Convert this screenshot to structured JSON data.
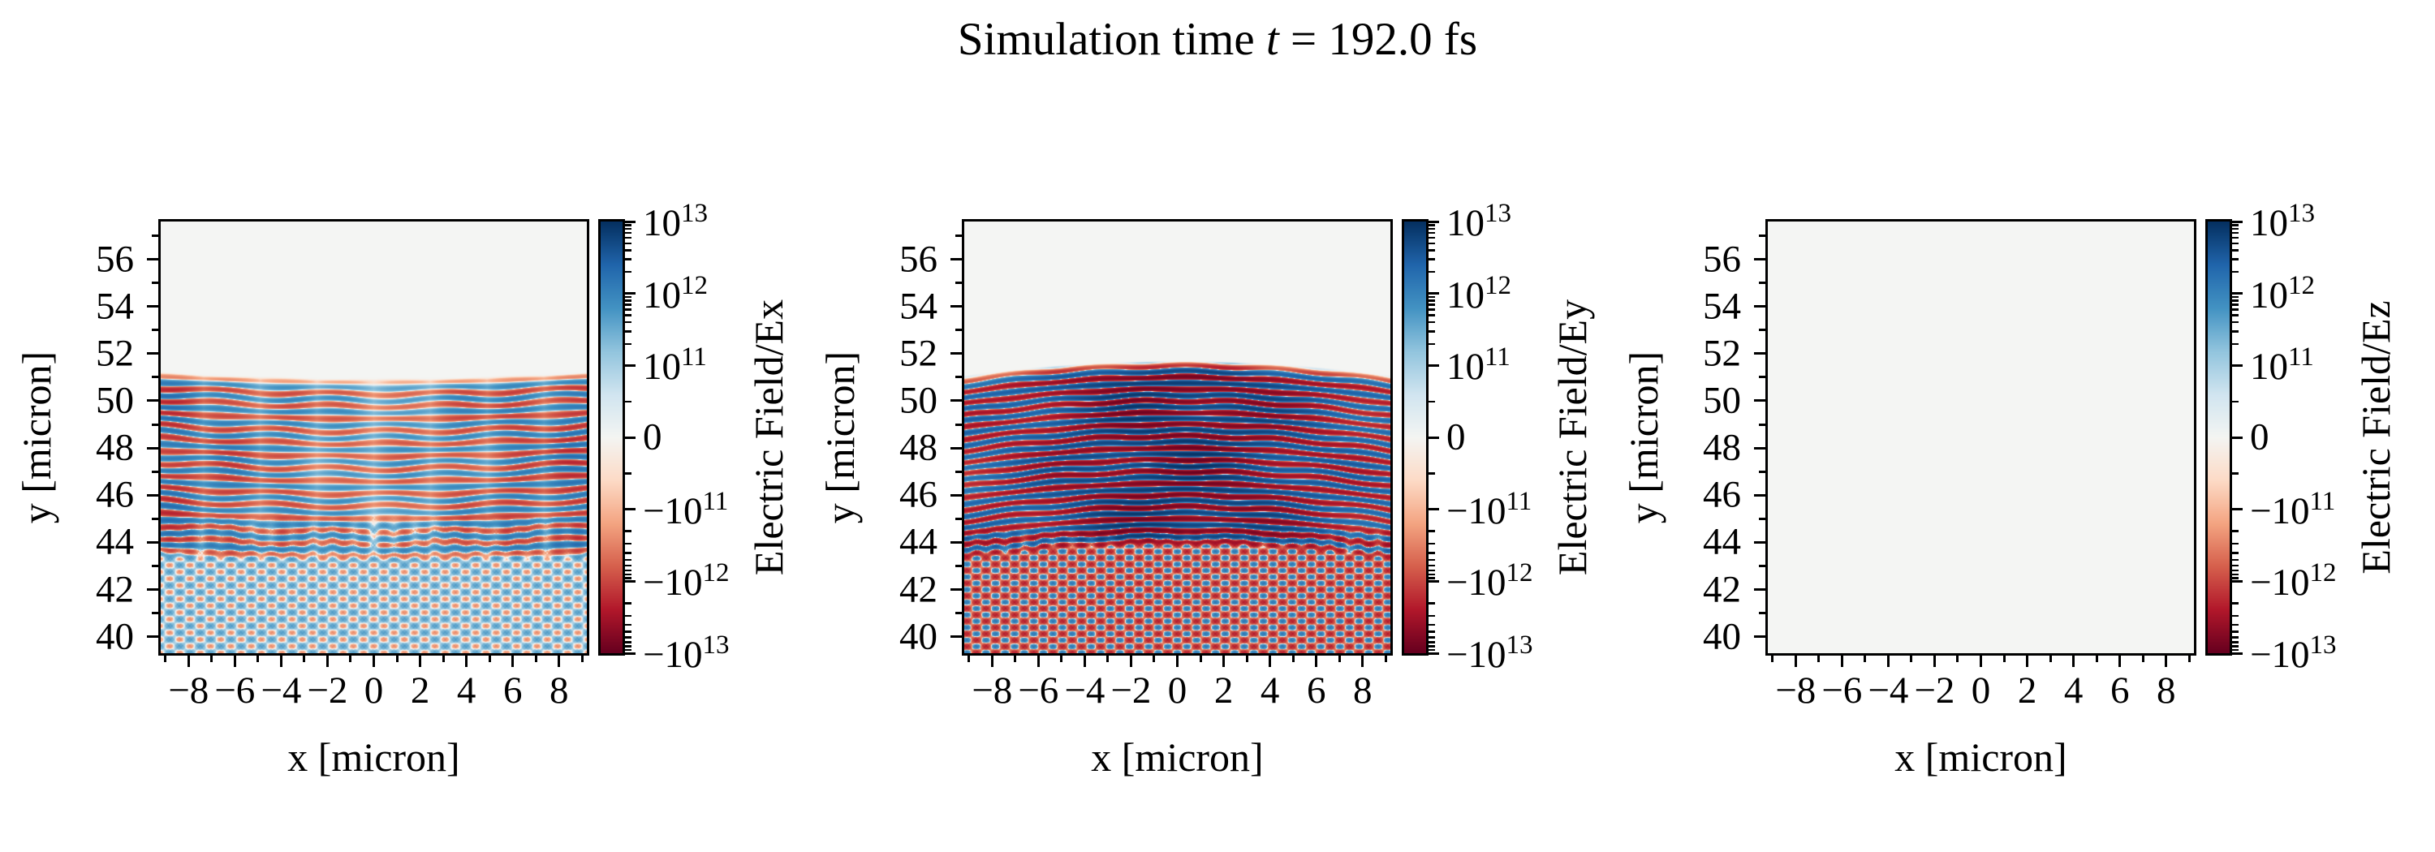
{
  "title": {
    "prefix": "Simulation time ",
    "variable": "t",
    "suffix": " = 192.0 fs",
    "display": "Simulation time t = 192.0 fs"
  },
  "colors": {
    "background": "#ffffff",
    "axis_and_text": "#000000",
    "zero_field": "#f4f5f3",
    "colormap_name": "RdBu (symlog)",
    "colormap_rdbu": [
      "#67001f",
      "#b2182b",
      "#d6604d",
      "#f4a582",
      "#fddbc7",
      "#f4f5f3",
      "#d1e5f0",
      "#92c5de",
      "#4393c3",
      "#2166ac",
      "#053061"
    ]
  },
  "chart_data": [
    {
      "type": "heatmap",
      "name": "Ex",
      "xlabel": "x [micron]",
      "ylabel": "y [micron]",
      "colorbar_label": "Electric Field/Ex",
      "xlim": [
        -9.2,
        9.2
      ],
      "ylim": [
        39.3,
        57.6
      ],
      "xticks_major": [
        -8,
        -6,
        -4,
        -2,
        0,
        2,
        4,
        6,
        8
      ],
      "xticks_minor": [
        -9,
        -7,
        -5,
        -3,
        -1,
        1,
        3,
        5,
        7,
        9
      ],
      "yticks_major": [
        40,
        42,
        44,
        46,
        48,
        50,
        52,
        54,
        56
      ],
      "yticks_minor": [
        41,
        43,
        45,
        47,
        49,
        51,
        53,
        55,
        57
      ],
      "colorbar": {
        "scale": "symlog",
        "linthresh": 100000000000.0,
        "vmin": -10000000000000.0,
        "vmax": 10000000000000.0,
        "major_ticks": [
          {
            "u": 3,
            "mantissa": "10",
            "exp": "13"
          },
          {
            "u": 2,
            "mantissa": "10",
            "exp": "12"
          },
          {
            "u": 1,
            "mantissa": "10",
            "exp": "11"
          },
          {
            "u": 0,
            "mantissa": "0",
            "exp": ""
          },
          {
            "u": -1,
            "mantissa": "−10",
            "exp": "11"
          },
          {
            "u": -2,
            "mantissa": "−10",
            "exp": "12"
          },
          {
            "u": -3,
            "mantissa": "−10",
            "exp": "13"
          }
        ]
      },
      "field": {
        "description": "horizontal standing-wave stripes y≈43–50.6 with nodal gaps at x≈0,±2.5, strongest at side edges; crossed diagonal wake (blue-dominant) below y≈43 centered x=0",
        "stripes": {
          "y_bottom": 43.0,
          "y_top": 50.65,
          "period": 0.53,
          "phase_ref": 39.3,
          "amplitude": 2200000000000.0,
          "node_spacing": 2.45,
          "node_floor": 0.45,
          "edge_base": 0.35,
          "edge_gain": 0.65,
          "arc_edge": -0.25,
          "wiggle_amp": 0.16,
          "wiggle_period": 4.9
        },
        "diag": {
          "y_center": 42.6,
          "y_fade_top": 44.9,
          "angle_deg": 33,
          "period": 0.48,
          "amplitude": 400000000000.0,
          "bias": 0.55
        }
      }
    },
    {
      "type": "heatmap",
      "name": "Ey",
      "xlabel": "x [micron]",
      "ylabel": "y [micron]",
      "colorbar_label": "Electric Field/Ey",
      "xlim": [
        -9.2,
        9.2
      ],
      "ylim": [
        39.3,
        57.6
      ],
      "xticks_major": [
        -8,
        -6,
        -4,
        -2,
        0,
        2,
        4,
        6,
        8
      ],
      "xticks_minor": [
        -9,
        -7,
        -5,
        -3,
        -1,
        1,
        3,
        5,
        7,
        9
      ],
      "yticks_major": [
        40,
        42,
        44,
        46,
        48,
        50,
        52,
        54,
        56
      ],
      "yticks_minor": [
        41,
        43,
        45,
        47,
        49,
        51,
        53,
        55,
        57
      ],
      "colorbar": {
        "scale": "symlog",
        "linthresh": 100000000000.0,
        "vmin": -10000000000000.0,
        "vmax": 10000000000000.0,
        "major_ticks": [
          {
            "u": 3,
            "mantissa": "10",
            "exp": "13"
          },
          {
            "u": 2,
            "mantissa": "10",
            "exp": "12"
          },
          {
            "u": 1,
            "mantissa": "10",
            "exp": "11"
          },
          {
            "u": 0,
            "mantissa": "0",
            "exp": ""
          },
          {
            "u": -1,
            "mantissa": "−10",
            "exp": "11"
          },
          {
            "u": -2,
            "mantissa": "−10",
            "exp": "12"
          },
          {
            "u": -3,
            "mantissa": "−10",
            "exp": "13"
          }
        ]
      },
      "field": {
        "description": "saturated dark red/blue horizontal laser stripes y≈44–51.3 strongest at centre (|E|≈1e13), bands arc downward toward edges; red-dominant crossed diagonal wake below y≈44",
        "stripes": {
          "y_bottom": 43.7,
          "y_top": 51.35,
          "period": 0.5,
          "phase_ref": 39.125,
          "amplitude": 9500000000000.0,
          "center_sigma": 5.2,
          "center_floor": 0.3,
          "arc_edge": 0.62,
          "wiggle_amp": 0.1,
          "wiggle_period": 3.8
        },
        "diag": {
          "y_center": 42.4,
          "y_fade_top": 44.4,
          "angle_deg": 33,
          "period": 0.45,
          "amplitude": 2000000000000.0,
          "bias": -0.4
        }
      }
    },
    {
      "type": "heatmap",
      "name": "Ez",
      "xlabel": "x [micron]",
      "ylabel": "y [micron]",
      "colorbar_label": "Electric Field/Ez",
      "xlim": [
        -9.2,
        9.2
      ],
      "ylim": [
        39.3,
        57.6
      ],
      "xticks_major": [
        -8,
        -6,
        -4,
        -2,
        0,
        2,
        4,
        6,
        8
      ],
      "xticks_minor": [
        -9,
        -7,
        -5,
        -3,
        -1,
        1,
        3,
        5,
        7,
        9
      ],
      "yticks_major": [
        40,
        42,
        44,
        46,
        48,
        50,
        52,
        54,
        56
      ],
      "yticks_minor": [
        41,
        43,
        45,
        47,
        49,
        51,
        53,
        55,
        57
      ],
      "colorbar": {
        "scale": "symlog",
        "linthresh": 100000000000.0,
        "vmin": -10000000000000.0,
        "vmax": 10000000000000.0,
        "major_ticks": [
          {
            "u": 3,
            "mantissa": "10",
            "exp": "13"
          },
          {
            "u": 2,
            "mantissa": "10",
            "exp": "12"
          },
          {
            "u": 1,
            "mantissa": "10",
            "exp": "11"
          },
          {
            "u": 0,
            "mantissa": "0",
            "exp": ""
          },
          {
            "u": -1,
            "mantissa": "−10",
            "exp": "11"
          },
          {
            "u": -2,
            "mantissa": "−10",
            "exp": "12"
          },
          {
            "u": -3,
            "mantissa": "−10",
            "exp": "13"
          }
        ]
      },
      "field": {
        "description": "uniform zero field (blank panel)",
        "uniform": 0
      }
    }
  ]
}
